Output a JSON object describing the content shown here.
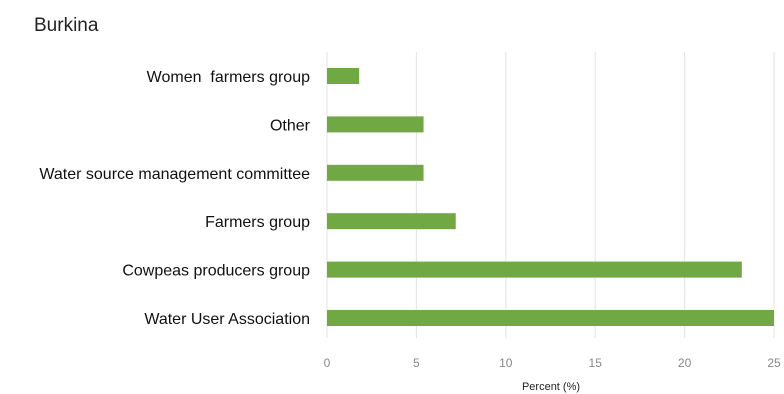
{
  "chart_data": {
    "type": "bar",
    "orientation": "horizontal",
    "title": "Burkina",
    "xlabel": "Percent (%)",
    "ylabel": "",
    "categories": [
      "Women  farmers group",
      "Other",
      "Water source management committee",
      "Farmers group",
      "Cowpeas producers group",
      "Water User Association"
    ],
    "values": [
      1.8,
      5.4,
      5.4,
      7.2,
      23.2,
      25.0
    ],
    "xlim": [
      0,
      25
    ],
    "xticks": [
      "0",
      "5",
      "10",
      "15",
      "20",
      "25"
    ],
    "grid": true,
    "legend": "none",
    "bar_color": "#70a844"
  }
}
